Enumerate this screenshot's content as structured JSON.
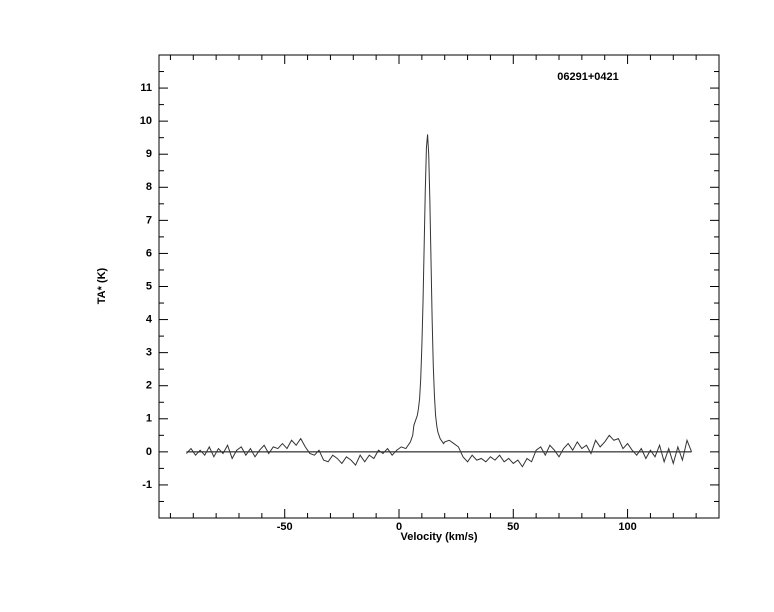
{
  "chart_data": {
    "type": "line",
    "title": "06291+0421",
    "x_label": "Velocity (km/s)",
    "y_label": "TA* (K)",
    "xlim": [
      -105,
      140
    ],
    "ylim": [
      -2,
      12
    ],
    "xticks": [
      -50,
      0,
      50,
      100
    ],
    "yticks": [
      -1,
      0,
      1,
      2,
      3,
      4,
      5,
      6,
      7,
      8,
      9,
      10,
      11
    ],
    "x": [
      -93,
      -91,
      -89,
      -87,
      -85,
      -83,
      -81,
      -79,
      -77,
      -75,
      -73,
      -71,
      -69,
      -67,
      -65,
      -63,
      -61,
      -59,
      -57,
      -55,
      -53,
      -51,
      -49,
      -47,
      -45,
      -43,
      -41,
      -39,
      -37,
      -35,
      -33,
      -31,
      -29,
      -27,
      -25,
      -23,
      -21,
      -19,
      -17,
      -15,
      -13,
      -11,
      -9,
      -7,
      -5,
      -3,
      -1,
      1,
      3,
      5,
      6,
      6.5,
      7,
      7.5,
      8,
      8.5,
      9,
      9.5,
      10,
      10.5,
      11,
      11.5,
      12,
      12.5,
      13,
      13.5,
      14,
      14.5,
      15,
      15.5,
      16,
      16.5,
      17,
      17.5,
      18,
      18.5,
      19,
      19.5,
      20,
      22,
      24,
      26,
      28,
      30,
      32,
      34,
      36,
      38,
      40,
      42,
      44,
      46,
      48,
      50,
      52,
      54,
      56,
      58,
      60,
      62,
      64,
      66,
      68,
      70,
      72,
      74,
      76,
      78,
      80,
      82,
      84,
      86,
      88,
      90,
      92,
      94,
      96,
      98,
      100,
      102,
      104,
      106,
      108,
      110,
      112,
      114,
      116,
      118,
      120,
      122,
      124,
      126,
      128
    ],
    "series": [
      {
        "color": "#333333",
        "values": [
          -0.05,
          0.1,
          -0.1,
          0.05,
          -0.1,
          0.15,
          -0.15,
          0.1,
          -0.05,
          0.2,
          -0.2,
          0.05,
          0.15,
          -0.1,
          0.1,
          -0.15,
          0.05,
          0.2,
          -0.05,
          0.15,
          0.1,
          0.25,
          0.1,
          0.35,
          0.2,
          0.4,
          0.15,
          -0.05,
          -0.1,
          0.05,
          -0.25,
          -0.3,
          -0.1,
          -0.2,
          -0.35,
          -0.15,
          -0.25,
          -0.4,
          -0.1,
          -0.3,
          -0.1,
          -0.2,
          0.05,
          -0.05,
          0.1,
          -0.1,
          0.05,
          0.15,
          0.1,
          0.3,
          0.5,
          0.8,
          0.9,
          1.0,
          1.1,
          1.3,
          1.6,
          2.2,
          3.2,
          4.5,
          6.2,
          7.9,
          9.2,
          9.6,
          9.0,
          7.6,
          5.8,
          4.0,
          2.6,
          1.7,
          1.1,
          0.8,
          0.6,
          0.5,
          0.4,
          0.35,
          0.3,
          0.25,
          0.3,
          0.35,
          0.25,
          0.15,
          -0.15,
          -0.3,
          -0.1,
          -0.25,
          -0.2,
          -0.3,
          -0.15,
          -0.25,
          -0.1,
          -0.3,
          -0.2,
          -0.35,
          -0.25,
          -0.45,
          -0.2,
          -0.3,
          0.05,
          0.15,
          -0.1,
          0.2,
          0.05,
          -0.15,
          0.1,
          0.25,
          0.05,
          0.3,
          0.1,
          0.2,
          -0.05,
          0.35,
          0.15,
          0.3,
          0.5,
          0.35,
          0.4,
          0.1,
          0.25,
          0.05,
          -0.1,
          0.1,
          -0.2,
          0.05,
          -0.15,
          0.2,
          -0.3,
          0.1,
          -0.35,
          0.15,
          -0.25,
          0.35,
          0.0
        ]
      }
    ]
  }
}
